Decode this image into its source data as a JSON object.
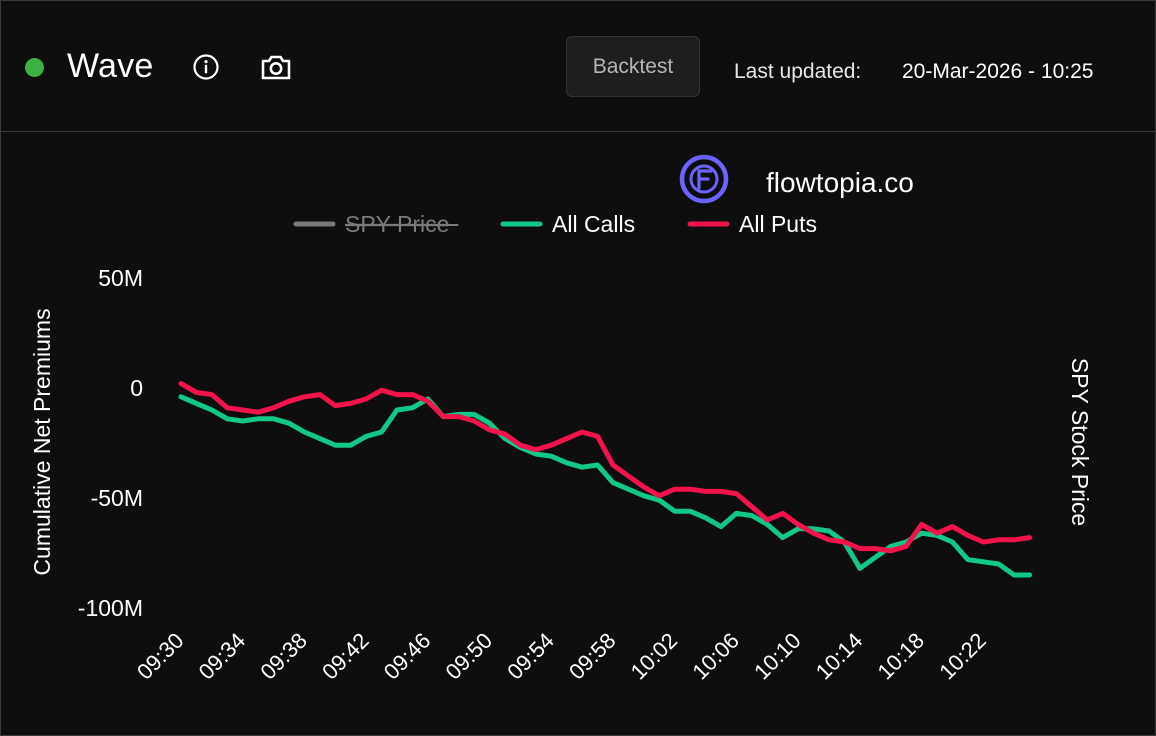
{
  "header": {
    "status_color": "#3cb043",
    "title": "Wave",
    "info_icon": "info-icon",
    "camera_icon": "camera-icon",
    "backtest_label": "Backtest",
    "last_updated_label": "Last updated:",
    "last_updated_value": "20-Mar-2026 - 10:25"
  },
  "brand": {
    "logo_icon": "flowtopia-logo-icon",
    "logo_color": "#6c63ff",
    "name": "flowtopia.co"
  },
  "chart_data": {
    "type": "line",
    "title": "",
    "ylabel": "Cumulative Net Premiums",
    "y2label": "SPY Stock Price",
    "ylim": [
      -100000000,
      50000000
    ],
    "yticks": [
      {
        "value": 50000000,
        "label": "50M"
      },
      {
        "value": 0,
        "label": "0"
      },
      {
        "value": -50000000,
        "label": "-50M"
      },
      {
        "value": -100000000,
        "label": "-100M"
      }
    ],
    "x_range": [
      0,
      56
    ],
    "xticks": [
      {
        "value": 0,
        "label": "09:30"
      },
      {
        "value": 4,
        "label": "09:34"
      },
      {
        "value": 8,
        "label": "09:38"
      },
      {
        "value": 12,
        "label": "09:42"
      },
      {
        "value": 16,
        "label": "09:46"
      },
      {
        "value": 20,
        "label": "09:50"
      },
      {
        "value": 24,
        "label": "09:54"
      },
      {
        "value": 28,
        "label": "09:58"
      },
      {
        "value": 32,
        "label": "10:02"
      },
      {
        "value": 36,
        "label": "10:06"
      },
      {
        "value": 40,
        "label": "10:10"
      },
      {
        "value": 44,
        "label": "10:14"
      },
      {
        "value": 48,
        "label": "10:18"
      },
      {
        "value": 52,
        "label": "10:22"
      }
    ],
    "legend_position": "top-center",
    "series": [
      {
        "name": "SPY Price",
        "color": "#7a7a7a",
        "hidden": true,
        "points": []
      },
      {
        "name": "All Calls",
        "color": "#12c887",
        "hidden": false,
        "points": [
          [
            0,
            -4
          ],
          [
            1,
            -7
          ],
          [
            2,
            -10
          ],
          [
            3,
            -14
          ],
          [
            4,
            -15
          ],
          [
            5,
            -14
          ],
          [
            6,
            -14
          ],
          [
            7,
            -16
          ],
          [
            8,
            -20
          ],
          [
            9,
            -23
          ],
          [
            10,
            -26
          ],
          [
            11,
            -26
          ],
          [
            12,
            -22
          ],
          [
            13,
            -20
          ],
          [
            14,
            -10
          ],
          [
            15,
            -9
          ],
          [
            16,
            -5
          ],
          [
            17,
            -13
          ],
          [
            18,
            -12
          ],
          [
            19,
            -12
          ],
          [
            20,
            -16
          ],
          [
            21,
            -23
          ],
          [
            22,
            -27
          ],
          [
            23,
            -30
          ],
          [
            24,
            -31
          ],
          [
            25,
            -34
          ],
          [
            26,
            -36
          ],
          [
            27,
            -35
          ],
          [
            28,
            -43
          ],
          [
            29,
            -46
          ],
          [
            30,
            -49
          ],
          [
            31,
            -51
          ],
          [
            32,
            -56
          ],
          [
            33,
            -56
          ],
          [
            34,
            -59
          ],
          [
            35,
            -63
          ],
          [
            36,
            -57
          ],
          [
            37,
            -58
          ],
          [
            38,
            -62
          ],
          [
            39,
            -68
          ],
          [
            40,
            -64
          ],
          [
            41,
            -64
          ],
          [
            42,
            -65
          ],
          [
            43,
            -70
          ],
          [
            44,
            -82
          ],
          [
            45,
            -77
          ],
          [
            46,
            -72
          ],
          [
            47,
            -70
          ],
          [
            48,
            -66
          ],
          [
            49,
            -67
          ],
          [
            50,
            -70
          ],
          [
            51,
            -78
          ],
          [
            52,
            -79
          ],
          [
            53,
            -80
          ],
          [
            54,
            -85
          ],
          [
            55,
            -85
          ]
        ]
      },
      {
        "name": "All Puts",
        "color": "#f2124c",
        "hidden": false,
        "points": [
          [
            0,
            2
          ],
          [
            1,
            -2
          ],
          [
            2,
            -3
          ],
          [
            3,
            -9
          ],
          [
            4,
            -10
          ],
          [
            5,
            -11
          ],
          [
            6,
            -9
          ],
          [
            7,
            -6
          ],
          [
            8,
            -4
          ],
          [
            9,
            -3
          ],
          [
            10,
            -8
          ],
          [
            11,
            -7
          ],
          [
            12,
            -5
          ],
          [
            13,
            -1
          ],
          [
            14,
            -3
          ],
          [
            15,
            -3
          ],
          [
            16,
            -6
          ],
          [
            17,
            -13
          ],
          [
            18,
            -13
          ],
          [
            19,
            -15
          ],
          [
            20,
            -19
          ],
          [
            21,
            -21
          ],
          [
            22,
            -26
          ],
          [
            23,
            -28
          ],
          [
            24,
            -26
          ],
          [
            25,
            -23
          ],
          [
            26,
            -20
          ],
          [
            27,
            -22
          ],
          [
            28,
            -35
          ],
          [
            29,
            -40
          ],
          [
            30,
            -45
          ],
          [
            31,
            -49
          ],
          [
            32,
            -46
          ],
          [
            33,
            -46
          ],
          [
            34,
            -47
          ],
          [
            35,
            -47
          ],
          [
            36,
            -48
          ],
          [
            37,
            -54
          ],
          [
            38,
            -60
          ],
          [
            39,
            -57
          ],
          [
            40,
            -62
          ],
          [
            41,
            -66
          ],
          [
            42,
            -69
          ],
          [
            43,
            -70
          ],
          [
            44,
            -73
          ],
          [
            45,
            -73
          ],
          [
            46,
            -74
          ],
          [
            47,
            -72
          ],
          [
            48,
            -62
          ],
          [
            49,
            -66
          ],
          [
            50,
            -63
          ],
          [
            51,
            -67
          ],
          [
            52,
            -70
          ],
          [
            53,
            -69
          ],
          [
            54,
            -69
          ],
          [
            55,
            -68
          ]
        ]
      }
    ]
  }
}
